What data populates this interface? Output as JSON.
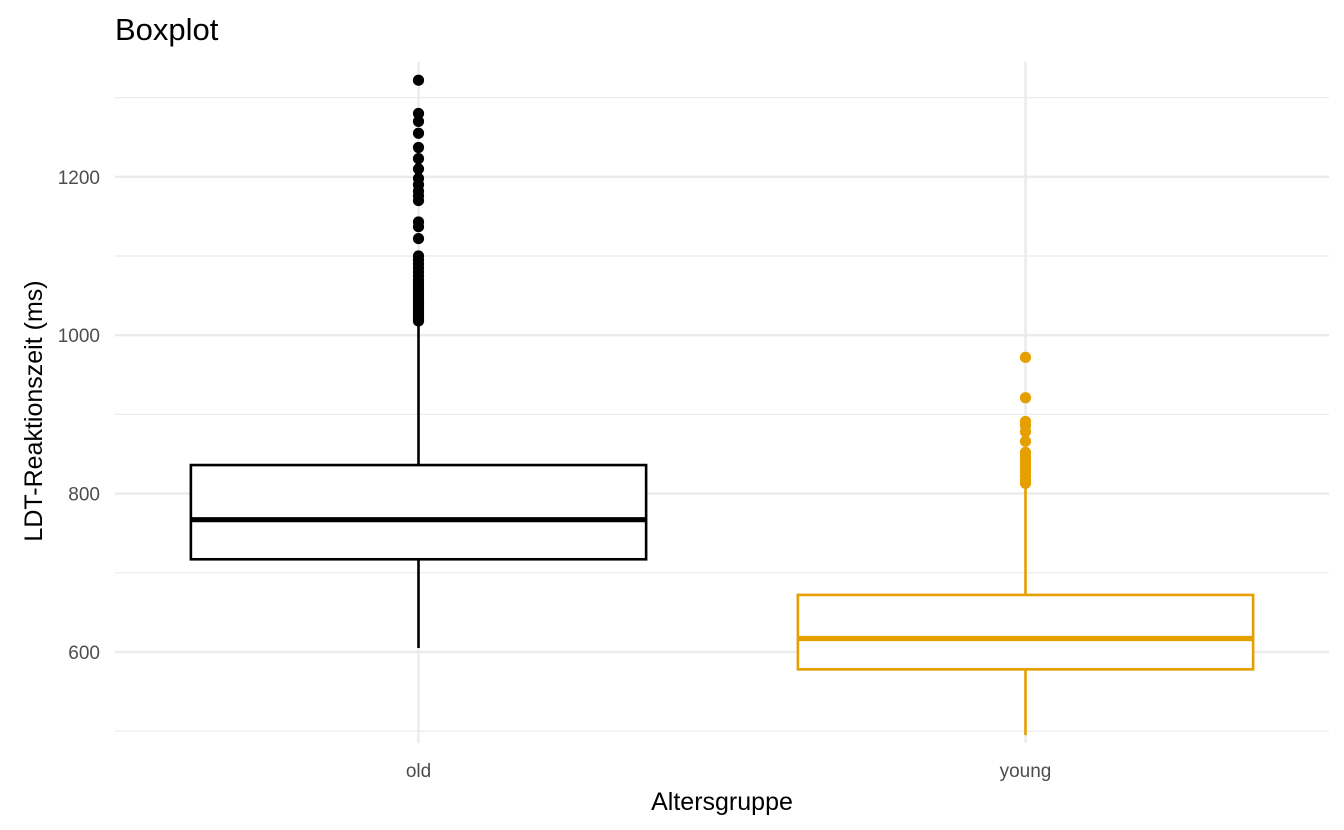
{
  "chart_data": {
    "type": "boxplot",
    "title": "Boxplot",
    "xlabel": "Altersgruppe",
    "ylabel": "LDT-Reaktionszeit (ms)",
    "ylim": [
      485,
      1345
    ],
    "y_ticks": [
      600,
      800,
      1000,
      1200
    ],
    "y_tick_labels": [
      "600",
      "800",
      "1000",
      "1200"
    ],
    "grid": true,
    "legend": "none",
    "categories": [
      "old",
      "young"
    ],
    "series": [
      {
        "category": "old",
        "color": "#000000",
        "whisker_low": 605,
        "q1": 717,
        "median": 767,
        "q3": 836,
        "whisker_high": 1015,
        "outliers": [
          1018,
          1020,
          1022,
          1025,
          1028,
          1031,
          1034,
          1037,
          1040,
          1043,
          1046,
          1050,
          1054,
          1058,
          1062,
          1066,
          1070,
          1075,
          1080,
          1085,
          1090,
          1095,
          1100,
          1122,
          1137,
          1143,
          1170,
          1176,
          1182,
          1190,
          1198,
          1210,
          1223,
          1237,
          1255,
          1270,
          1280,
          1322
        ]
      },
      {
        "category": "young",
        "color": "#E69F00",
        "whisker_low": 495,
        "q1": 578,
        "median": 617,
        "q3": 672,
        "whisker_high": 810,
        "outliers": [
          813,
          817,
          822,
          827,
          832,
          837,
          842,
          847,
          852,
          866,
          878,
          886,
          891,
          921,
          972
        ]
      }
    ]
  }
}
